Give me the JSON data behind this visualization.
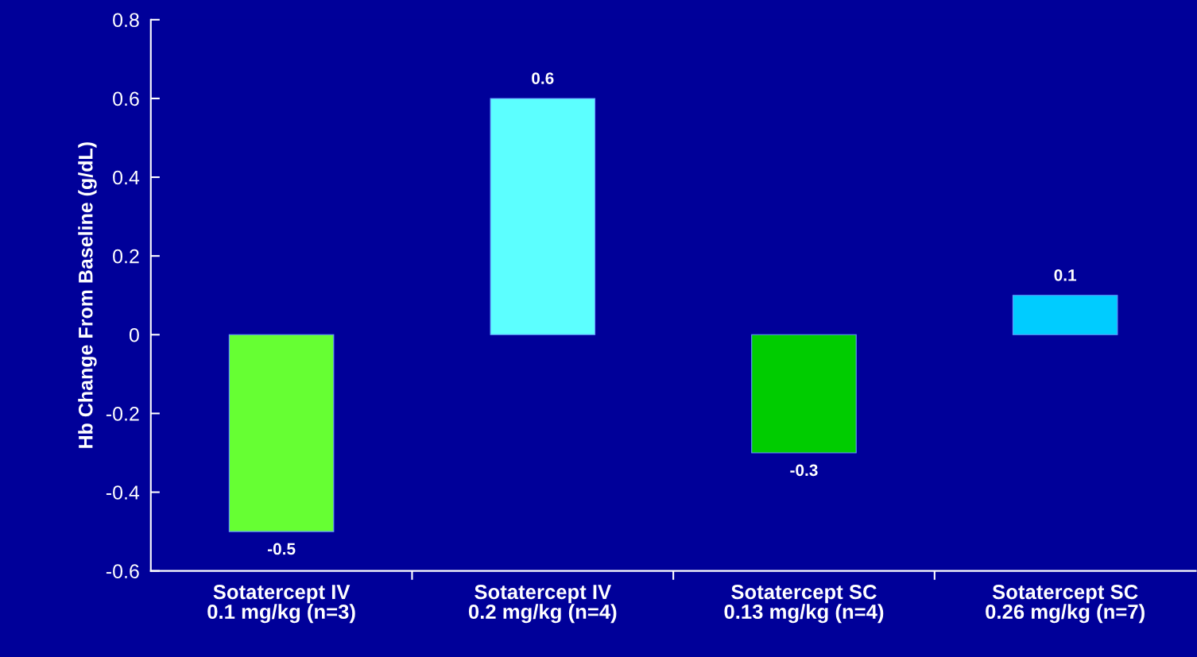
{
  "chart_data": {
    "type": "bar",
    "ylabel": "Hb Change From Baseline (g/dL)",
    "categories": [
      "Sotatercept IV\n0.1 mg/kg (n=3)",
      "Sotatercept IV\n0.2 mg/kg (n=4)",
      "Sotatercept SC\n0.13 mg/kg (n=4)",
      "Sotatercept SC\n0.26 mg/kg (n=7)"
    ],
    "values": [
      -0.5,
      0.6,
      -0.3,
      0.1
    ],
    "colors": [
      "#66ff33",
      "#5cffff",
      "#00cc00",
      "#00ccff"
    ],
    "ylim": [
      -0.6,
      0.8
    ],
    "yticks": [
      -0.6,
      -0.4,
      -0.2,
      0,
      0.2,
      0.4,
      0.6,
      0.8
    ],
    "data_labels": true,
    "grid": false,
    "legend": false
  }
}
